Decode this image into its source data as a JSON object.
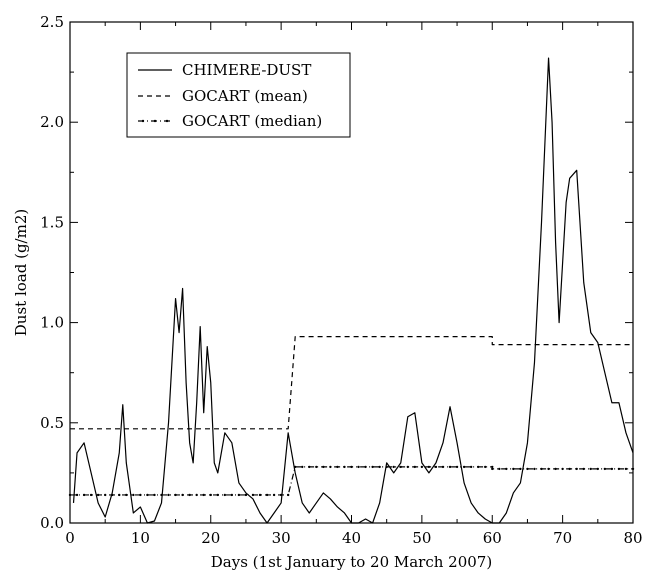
{
  "chart_data": {
    "type": "line",
    "title": "",
    "xlabel": "Days (1st January to 20 March 2007)",
    "ylabel": "Dust load (g/m2)",
    "xlim": [
      0,
      80
    ],
    "ylim": [
      0,
      2.5
    ],
    "xticks": [
      "0",
      "10",
      "20",
      "30",
      "40",
      "50",
      "60",
      "70",
      "80"
    ],
    "yticks": [
      "0.0",
      "0.5",
      "1.0",
      "1.5",
      "2.0",
      "2.5"
    ],
    "grid": false,
    "legend_position": "top-left",
    "series": [
      {
        "name": "CHIMERE-DUST",
        "style": "solid",
        "color": "#000000",
        "x": [
          0.5,
          1,
          2,
          3,
          4,
          5,
          6,
          7,
          7.5,
          8,
          9,
          10,
          11,
          12,
          13,
          14,
          15,
          15.5,
          16,
          16.5,
          17,
          17.5,
          18,
          18.5,
          19,
          19.5,
          20,
          20.5,
          21,
          22,
          23,
          24,
          25,
          26,
          27,
          28,
          29,
          30,
          31,
          32,
          33,
          34,
          35,
          36,
          37,
          38,
          39,
          40,
          41,
          42,
          43,
          44,
          45,
          46,
          47,
          48,
          49,
          50,
          51,
          52,
          53,
          54,
          55,
          56,
          57,
          58,
          59,
          60,
          61,
          62,
          63,
          64,
          65,
          66,
          67,
          68,
          68.5,
          69,
          69.5,
          70,
          70.5,
          71,
          72,
          73,
          74,
          75,
          76,
          77,
          78,
          79,
          80
        ],
        "values": [
          0.1,
          0.35,
          0.4,
          0.25,
          0.1,
          0.03,
          0.15,
          0.35,
          0.59,
          0.3,
          0.05,
          0.08,
          0.0,
          0.01,
          0.1,
          0.5,
          1.12,
          0.95,
          1.17,
          0.7,
          0.4,
          0.3,
          0.6,
          0.98,
          0.55,
          0.88,
          0.7,
          0.3,
          0.25,
          0.45,
          0.4,
          0.2,
          0.15,
          0.12,
          0.05,
          0.0,
          0.05,
          0.1,
          0.45,
          0.25,
          0.1,
          0.05,
          0.1,
          0.15,
          0.12,
          0.08,
          0.05,
          0.0,
          0.0,
          0.02,
          0.0,
          0.1,
          0.3,
          0.25,
          0.3,
          0.53,
          0.55,
          0.3,
          0.25,
          0.3,
          0.4,
          0.58,
          0.4,
          0.2,
          0.1,
          0.05,
          0.02,
          0.0,
          0.0,
          0.05,
          0.15,
          0.2,
          0.4,
          0.8,
          1.5,
          2.32,
          2.0,
          1.4,
          1.0,
          1.3,
          1.6,
          1.72,
          1.76,
          1.2,
          0.95,
          0.9,
          0.75,
          0.6,
          0.6,
          0.45,
          0.35
        ]
      },
      {
        "name": "GOCART (mean)",
        "style": "dashed",
        "color": "#000000",
        "x": [
          0,
          31,
          32,
          60,
          60,
          80
        ],
        "values": [
          0.47,
          0.47,
          0.93,
          0.93,
          0.89,
          0.89
        ]
      },
      {
        "name": "GOCART (median)",
        "style": "dash-dot-marker",
        "color": "#000000",
        "x": [
          0,
          31,
          32,
          60,
          60,
          80
        ],
        "values": [
          0.14,
          0.14,
          0.28,
          0.28,
          0.27,
          0.27
        ]
      }
    ]
  }
}
